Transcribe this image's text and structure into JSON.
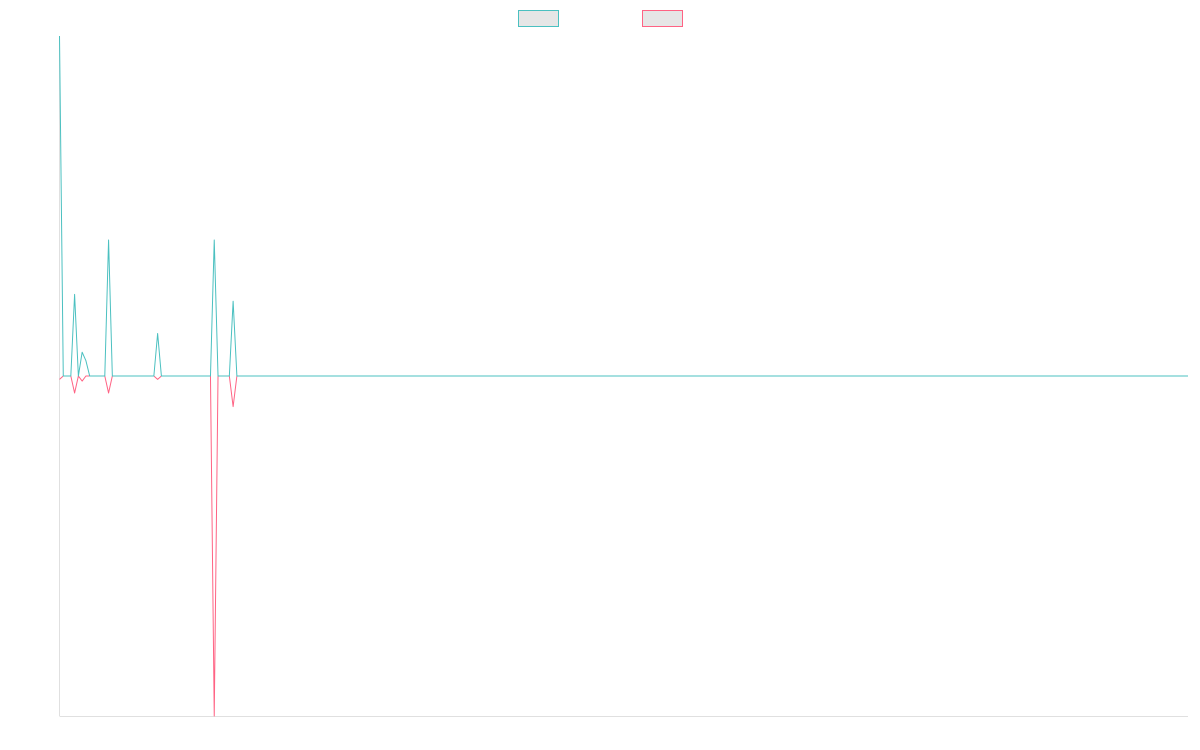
{
  "chart_data": {
    "type": "line",
    "title": "",
    "xlabel": "",
    "ylabel": "",
    "grid": false,
    "legend_position": "top-center",
    "point_count": 300,
    "ylim": [
      -100,
      100
    ],
    "series": [
      {
        "color": "#4bc0c0",
        "fill": "#e6e6e6",
        "spikes": [
          {
            "i": 0,
            "v": 100
          },
          {
            "i": 4,
            "v": 24
          },
          {
            "i": 6,
            "v": 7
          },
          {
            "i": 7,
            "v": 4.5
          },
          {
            "i": 13,
            "v": 40
          },
          {
            "i": 26,
            "v": 12.5
          },
          {
            "i": 41,
            "v": 40
          },
          {
            "i": 46,
            "v": 22
          }
        ]
      },
      {
        "color": "#ff6384",
        "fill": "#e6e6e6",
        "spikes": [
          {
            "i": 0,
            "v": -1
          },
          {
            "i": 4,
            "v": -5
          },
          {
            "i": 6,
            "v": -1.5
          },
          {
            "i": 13,
            "v": -5
          },
          {
            "i": 26,
            "v": -1
          },
          {
            "i": 41,
            "v": -100
          },
          {
            "i": 46,
            "v": -9
          }
        ]
      }
    ]
  }
}
